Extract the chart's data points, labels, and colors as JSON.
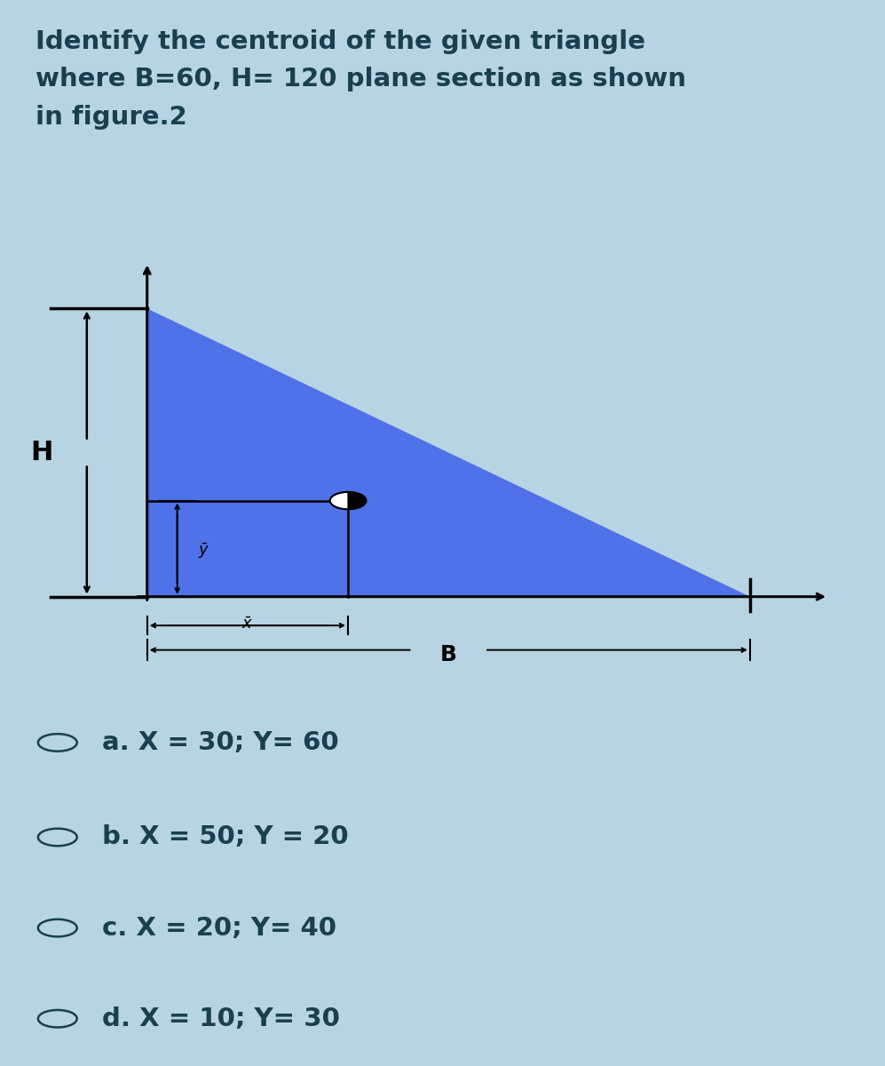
{
  "bg_color": "#b8d4e2",
  "title_bg": "#c5dce8",
  "diagram_bg": "#ffffff",
  "title_text_line1": "Identify the centroid of the given triangle",
  "title_text_line2": "where B=60, H= 120 plane section as shown",
  "title_text_line3": "in figure.2",
  "title_color": "#1a3f50",
  "title_fontsize": 21,
  "triangle_color": "#4f72e8",
  "options": [
    "a. X = 30; Y= 60",
    "b. X = 50; Y = 20",
    "c. X = 20; Y= 40",
    "d. X = 10; Y= 30"
  ],
  "option_color": "#1a3f50",
  "option_fontsize": 21,
  "radio_color": "#1a3f50"
}
